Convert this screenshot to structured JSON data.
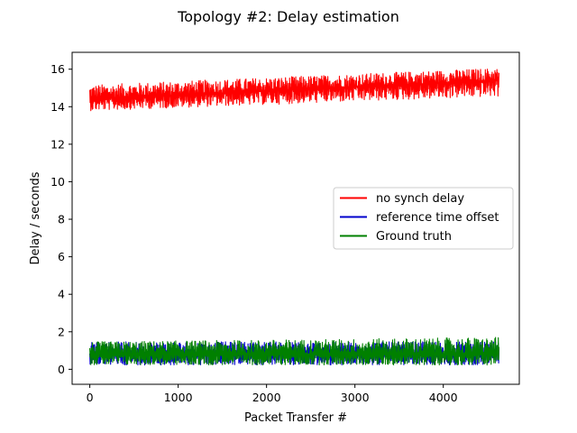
{
  "chart_data": {
    "type": "line",
    "title": "Topology #2: Delay estimation",
    "xlabel": "Packet Transfer #",
    "ylabel": "Delay / seconds",
    "xlim": [
      -200,
      4860
    ],
    "ylim": [
      -0.8,
      16.9
    ],
    "xticks": [
      0,
      1000,
      2000,
      3000,
      4000
    ],
    "yticks": [
      0,
      2,
      4,
      6,
      8,
      10,
      12,
      14,
      16
    ],
    "grid": false,
    "legend_position": "center-right",
    "series": [
      {
        "name": "no synch delay",
        "color": "#ff0000",
        "x_range": [
          0,
          4630
        ],
        "trend_start": 14.4,
        "trend_end": 15.4,
        "band_min_start": 13.75,
        "band_max_start": 15.2,
        "band_min_end": 14.5,
        "band_max_end": 16.1
      },
      {
        "name": "reference time offset",
        "color": "#0000cc",
        "x_range": [
          0,
          4630
        ],
        "trend_start": 0.8,
        "trend_end": 0.8,
        "band_min_start": 0.2,
        "band_max_start": 1.5,
        "band_min_end": 0.2,
        "band_max_end": 1.5
      },
      {
        "name": "Ground truth",
        "color": "#008000",
        "x_range": [
          0,
          4630
        ],
        "trend_start": 0.8,
        "trend_end": 0.8,
        "band_min_start": 0.2,
        "band_max_start": 1.5,
        "band_min_end": 0.2,
        "band_max_end": 1.75
      }
    ]
  }
}
